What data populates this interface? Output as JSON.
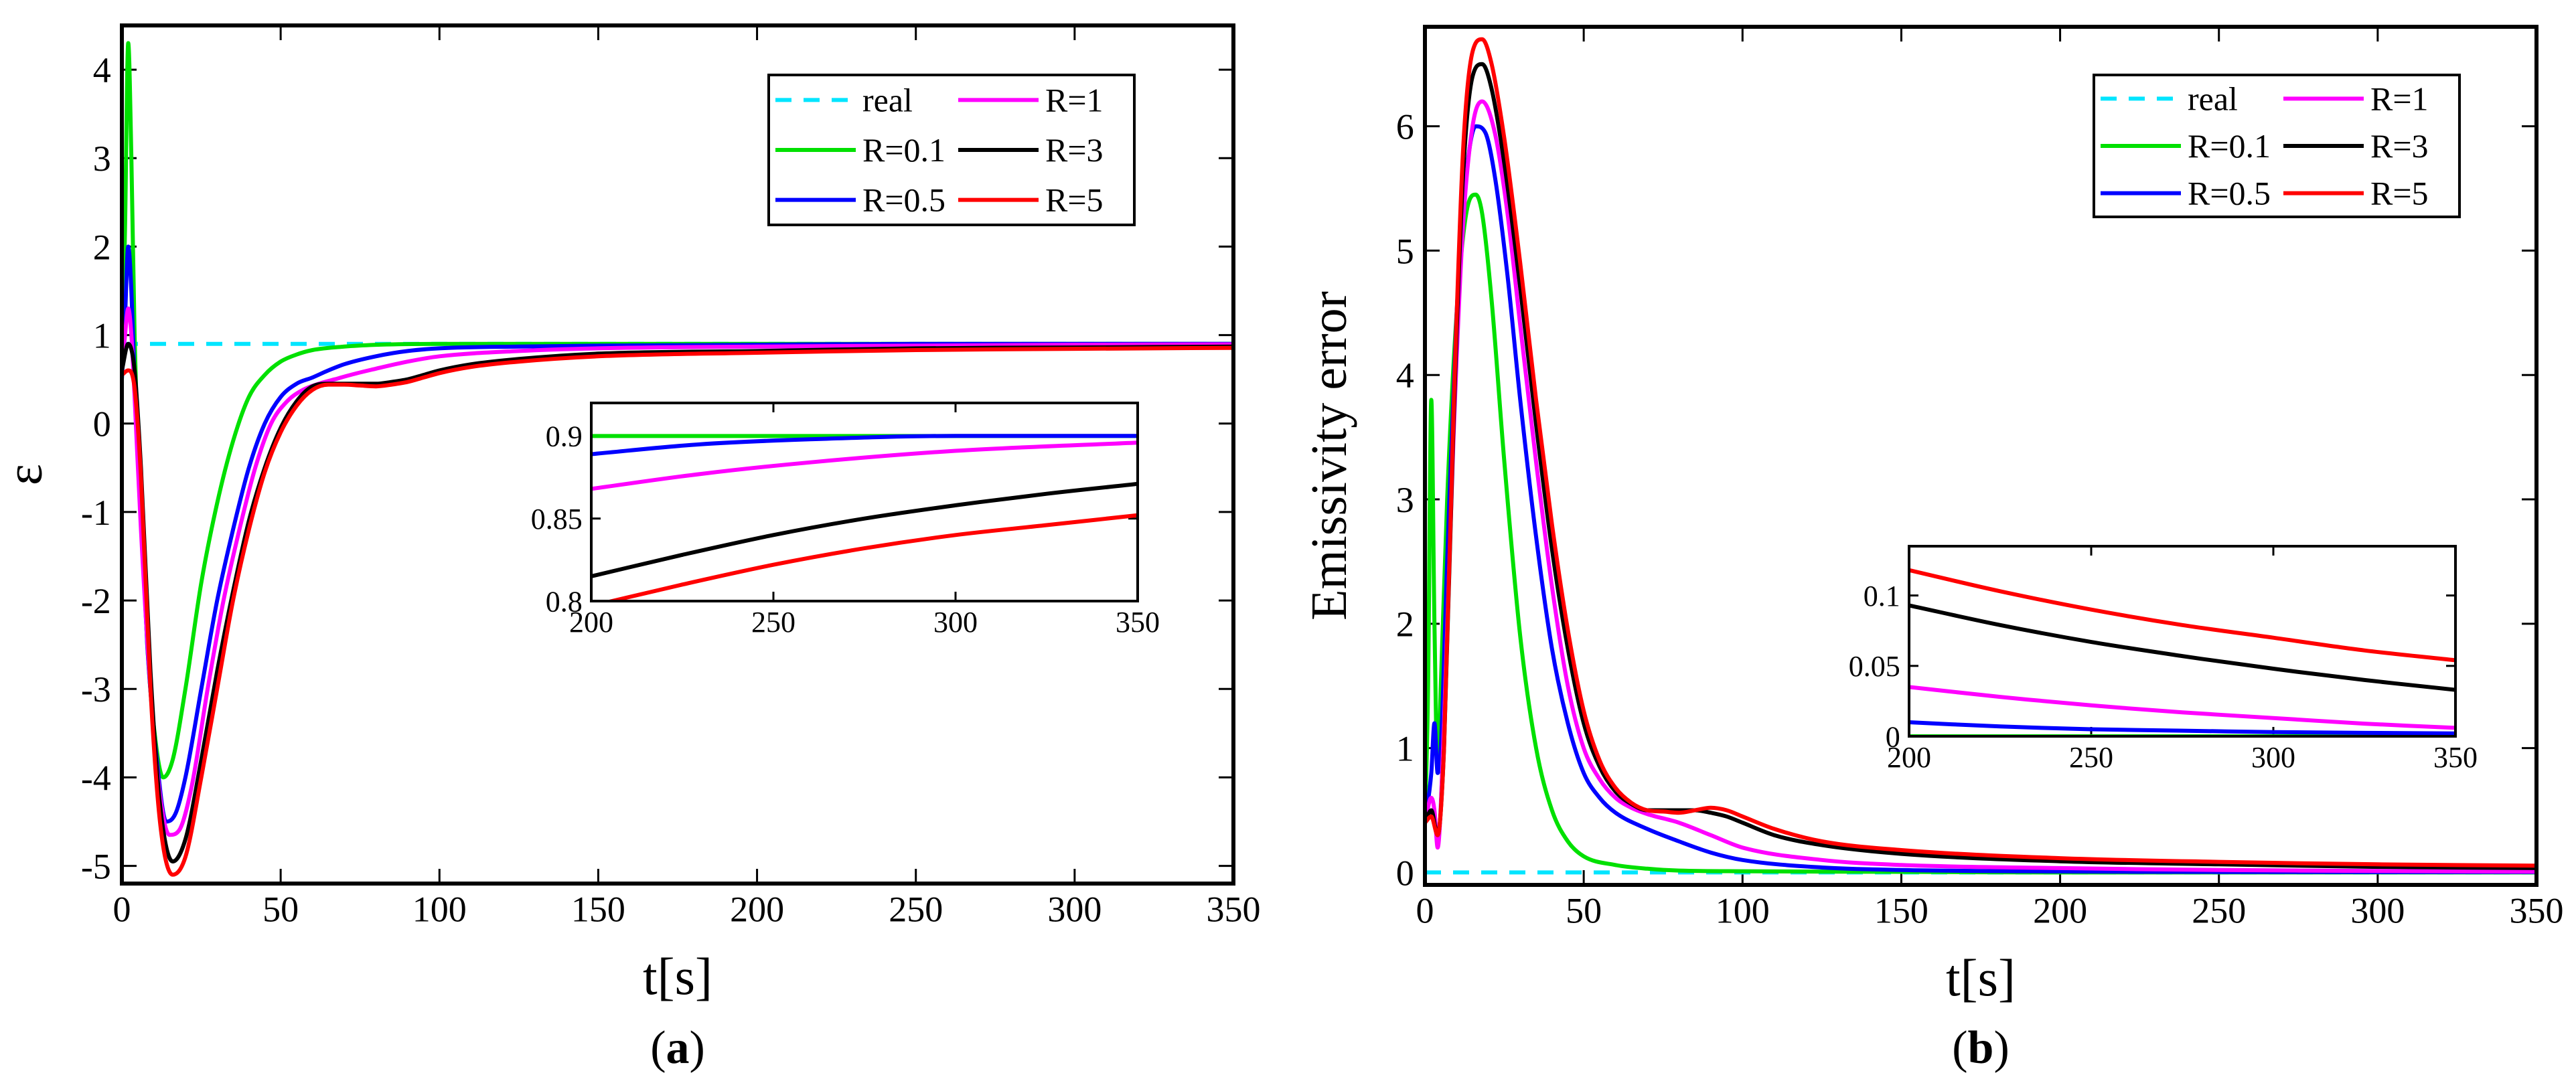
{
  "colors": {
    "real": "#00e5ff",
    "R=0.1": "#00e000",
    "R=0.5": "#0000ff",
    "R=1": "#ff00ff",
    "R=3": "#000000",
    "R=5": "#ff0000"
  },
  "chart_data": [
    {
      "type": "line",
      "panel_label": "(a)",
      "panel_label_parts": [
        "(",
        "a",
        ")"
      ],
      "title": "",
      "xlabel": "t[s]",
      "ylabel": "ε",
      "xlim": [
        0,
        350
      ],
      "ylim": [
        -5.2,
        4.5
      ],
      "xticks": [
        0,
        50,
        100,
        150,
        200,
        250,
        300,
        350
      ],
      "yticks": [
        -5,
        -4,
        -3,
        -2,
        -1,
        0,
        1,
        2,
        3,
        4
      ],
      "legend": [
        "real",
        "R=1",
        "R=0.1",
        "R=3",
        "R=0.5",
        "R=5"
      ],
      "series": [
        {
          "name": "real",
          "style": "dashed",
          "x": [
            0,
            350
          ],
          "values": [
            0.9,
            0.9
          ]
        },
        {
          "name": "R=0.1",
          "x": [
            0,
            1,
            2,
            3,
            4,
            6,
            8,
            10,
            13,
            16,
            20,
            25,
            30,
            35,
            40,
            45,
            50,
            55,
            60,
            70,
            80,
            100,
            150,
            200,
            250,
            300,
            350
          ],
          "values": [
            0.5,
            2.2,
            4.3,
            3.0,
            1.0,
            -1.0,
            -2.5,
            -3.4,
            -4.0,
            -3.8,
            -3.0,
            -1.8,
            -0.9,
            -0.2,
            0.3,
            0.55,
            0.7,
            0.78,
            0.83,
            0.87,
            0.89,
            0.9,
            0.9,
            0.9,
            0.9,
            0.9,
            0.9
          ]
        },
        {
          "name": "R=0.5",
          "x": [
            0,
            1,
            2,
            3,
            4,
            6,
            8,
            11,
            14,
            17,
            20,
            25,
            30,
            35,
            40,
            45,
            50,
            55,
            60,
            65,
            70,
            80,
            90,
            100,
            125,
            150,
            200,
            250,
            300,
            350
          ],
          "values": [
            0.5,
            1.2,
            2.0,
            1.5,
            0.5,
            -1.0,
            -2.5,
            -3.8,
            -4.5,
            -4.4,
            -4.0,
            -3.0,
            -2.0,
            -1.2,
            -0.5,
            0.0,
            0.3,
            0.45,
            0.52,
            0.6,
            0.67,
            0.76,
            0.82,
            0.85,
            0.87,
            0.88,
            0.89,
            0.9,
            0.9,
            0.9
          ]
        },
        {
          "name": "R=1",
          "x": [
            0,
            1,
            2,
            3,
            4,
            6,
            9,
            12,
            15,
            18,
            22,
            27,
            32,
            37,
            42,
            47,
            52,
            57,
            62,
            67,
            72,
            80,
            90,
            100,
            125,
            150,
            200,
            250,
            300,
            350
          ],
          "values": [
            0.6,
            1.0,
            1.3,
            1.0,
            0.3,
            -1.2,
            -3.0,
            -4.2,
            -4.65,
            -4.6,
            -4.1,
            -3.0,
            -2.0,
            -1.2,
            -0.5,
            0.0,
            0.25,
            0.38,
            0.45,
            0.5,
            0.55,
            0.62,
            0.7,
            0.76,
            0.82,
            0.85,
            0.87,
            0.88,
            0.89,
            0.895
          ]
        },
        {
          "name": "R=3",
          "x": [
            0,
            2,
            4,
            6,
            9,
            12,
            16,
            20,
            25,
            30,
            35,
            40,
            45,
            50,
            55,
            60,
            65,
            70,
            75,
            80,
            85,
            90,
            95,
            100,
            110,
            125,
            150,
            200,
            250,
            300,
            350
          ],
          "values": [
            0.6,
            0.9,
            0.6,
            -0.5,
            -2.8,
            -4.3,
            -4.95,
            -4.7,
            -3.8,
            -2.8,
            -1.9,
            -1.1,
            -0.5,
            -0.05,
            0.25,
            0.42,
            0.45,
            0.45,
            0.45,
            0.45,
            0.47,
            0.5,
            0.55,
            0.6,
            0.67,
            0.73,
            0.79,
            0.82,
            0.85,
            0.86,
            0.87
          ]
        },
        {
          "name": "R=5",
          "x": [
            0,
            2,
            4,
            6,
            9,
            12,
            16,
            20,
            25,
            30,
            35,
            40,
            45,
            50,
            55,
            60,
            65,
            70,
            75,
            80,
            85,
            90,
            95,
            100,
            110,
            125,
            150,
            200,
            250,
            300,
            350
          ],
          "values": [
            0.55,
            0.6,
            0.4,
            -0.6,
            -3.0,
            -4.5,
            -5.1,
            -4.9,
            -4.0,
            -3.0,
            -2.0,
            -1.2,
            -0.55,
            -0.1,
            0.2,
            0.38,
            0.44,
            0.44,
            0.43,
            0.42,
            0.44,
            0.47,
            0.52,
            0.57,
            0.64,
            0.7,
            0.76,
            0.8,
            0.83,
            0.845,
            0.855
          ]
        }
      ],
      "inset": {
        "xlim": [
          200,
          350
        ],
        "ylim": [
          0.8,
          0.92
        ],
        "xticks": [
          200,
          250,
          300,
          350
        ],
        "yticks": [
          0.8,
          0.85,
          0.9
        ],
        "series": [
          {
            "name": "R=0.1",
            "x": [
              200,
              350
            ],
            "values": [
              0.9,
              0.9
            ]
          },
          {
            "name": "R=0.5",
            "x": [
              200,
              230,
              260,
              300,
              350
            ],
            "values": [
              0.889,
              0.895,
              0.898,
              0.9,
              0.9
            ]
          },
          {
            "name": "R=1",
            "x": [
              200,
              230,
              260,
              300,
              350
            ],
            "values": [
              0.868,
              0.877,
              0.884,
              0.891,
              0.896
            ]
          },
          {
            "name": "R=3",
            "x": [
              200,
              225,
              250,
              275,
              300,
              325,
              350
            ],
            "values": [
              0.815,
              0.828,
              0.84,
              0.85,
              0.858,
              0.865,
              0.871
            ]
          },
          {
            "name": "R=5",
            "x": [
              200,
              225,
              250,
              275,
              300,
              325,
              350
            ],
            "values": [
              0.797,
              0.81,
              0.822,
              0.832,
              0.84,
              0.846,
              0.852
            ]
          }
        ]
      }
    },
    {
      "type": "line",
      "panel_label": "(b)",
      "panel_label_parts": [
        "(",
        "b",
        ")"
      ],
      "title": "",
      "xlabel": "t[s]",
      "ylabel": "Emissivity error",
      "xlim": [
        0,
        350
      ],
      "ylim": [
        -0.1,
        6.8
      ],
      "xticks": [
        0,
        50,
        100,
        150,
        200,
        250,
        300,
        350
      ],
      "yticks": [
        0,
        1,
        2,
        3,
        4,
        5,
        6
      ],
      "legend": [
        "real",
        "R=1",
        "R=0.1",
        "R=3",
        "R=0.5",
        "R=5"
      ],
      "series": [
        {
          "name": "real",
          "style": "dashed",
          "x": [
            0,
            350
          ],
          "values": [
            0,
            0
          ]
        },
        {
          "name": "R=0.1",
          "x": [
            0,
            1,
            2,
            3,
            4,
            5,
            7,
            10,
            13,
            16,
            18,
            21,
            25,
            30,
            35,
            40,
            45,
            50,
            60,
            70,
            80,
            100,
            150,
            200,
            350
          ],
          "values": [
            0.4,
            1.5,
            3.8,
            2.0,
            0.8,
            1.5,
            3.0,
            4.5,
            5.3,
            5.45,
            5.3,
            4.6,
            3.3,
            1.9,
            1.0,
            0.5,
            0.25,
            0.13,
            0.06,
            0.03,
            0.015,
            0.01,
            0.005,
            0.0,
            0.0
          ]
        },
        {
          "name": "R=0.5",
          "x": [
            0,
            2,
            3,
            4,
            5,
            7,
            10,
            13,
            16,
            19,
            22,
            26,
            30,
            35,
            40,
            45,
            50,
            55,
            60,
            70,
            80,
            90,
            100,
            125,
            150,
            200,
            250,
            350
          ],
          "values": [
            0.4,
            0.8,
            1.2,
            0.8,
            1.0,
            2.5,
            4.5,
            5.6,
            6.0,
            5.95,
            5.6,
            4.8,
            3.8,
            2.7,
            1.8,
            1.2,
            0.8,
            0.6,
            0.48,
            0.35,
            0.25,
            0.16,
            0.1,
            0.04,
            0.02,
            0.008,
            0.004,
            0.003
          ]
        },
        {
          "name": "R=1",
          "x": [
            0,
            2,
            3,
            4,
            6,
            9,
            12,
            15,
            18,
            22,
            26,
            30,
            35,
            40,
            45,
            50,
            55,
            60,
            65,
            70,
            80,
            90,
            100,
            125,
            150,
            200,
            250,
            300,
            350
          ],
          "values": [
            0.4,
            0.6,
            0.5,
            0.2,
            1.2,
            3.5,
            5.2,
            6.0,
            6.2,
            5.95,
            5.3,
            4.4,
            3.3,
            2.3,
            1.5,
            1.0,
            0.75,
            0.6,
            0.52,
            0.47,
            0.4,
            0.3,
            0.2,
            0.1,
            0.06,
            0.035,
            0.02,
            0.012,
            0.006
          ]
        },
        {
          "name": "R=3",
          "x": [
            0,
            2,
            4,
            6,
            9,
            12,
            15,
            18,
            21,
            25,
            30,
            35,
            40,
            45,
            50,
            55,
            60,
            65,
            70,
            75,
            80,
            85,
            90,
            95,
            100,
            110,
            125,
            150,
            200,
            250,
            300,
            350
          ],
          "values": [
            0.4,
            0.5,
            0.3,
            1.0,
            3.6,
            5.6,
            6.4,
            6.5,
            6.3,
            5.7,
            4.7,
            3.6,
            2.6,
            1.8,
            1.2,
            0.85,
            0.65,
            0.55,
            0.5,
            0.5,
            0.5,
            0.5,
            0.48,
            0.45,
            0.4,
            0.3,
            0.22,
            0.15,
            0.09,
            0.065,
            0.045,
            0.035
          ]
        },
        {
          "name": "R=5",
          "x": [
            0,
            2,
            4,
            6,
            9,
            12,
            15,
            18,
            21,
            25,
            30,
            35,
            40,
            45,
            50,
            55,
            60,
            65,
            70,
            75,
            80,
            85,
            90,
            95,
            100,
            110,
            125,
            150,
            200,
            250,
            300,
            350
          ],
          "values": [
            0.4,
            0.45,
            0.3,
            1.0,
            3.7,
            5.8,
            6.6,
            6.7,
            6.5,
            5.9,
            4.9,
            3.8,
            2.8,
            1.95,
            1.3,
            0.9,
            0.68,
            0.56,
            0.5,
            0.49,
            0.48,
            0.5,
            0.52,
            0.5,
            0.45,
            0.35,
            0.25,
            0.18,
            0.115,
            0.085,
            0.065,
            0.055
          ]
        }
      ],
      "inset": {
        "xlim": [
          200,
          350
        ],
        "ylim": [
          0,
          0.135
        ],
        "xticks": [
          200,
          250,
          300,
          350
        ],
        "yticks": [
          0,
          0.05,
          0.1
        ],
        "series": [
          {
            "name": "R=0.1",
            "x": [
              200,
              350
            ],
            "values": [
              0.0,
              0.0
            ]
          },
          {
            "name": "R=0.5",
            "x": [
              200,
              225,
              250,
              275,
              300,
              350
            ],
            "values": [
              0.01,
              0.007,
              0.005,
              0.004,
              0.003,
              0.002
            ]
          },
          {
            "name": "R=1",
            "x": [
              200,
              225,
              250,
              275,
              300,
              325,
              350
            ],
            "values": [
              0.035,
              0.028,
              0.022,
              0.017,
              0.013,
              0.009,
              0.006
            ]
          },
          {
            "name": "R=3",
            "x": [
              200,
              225,
              250,
              275,
              300,
              325,
              350
            ],
            "values": [
              0.093,
              0.079,
              0.067,
              0.057,
              0.048,
              0.04,
              0.033
            ]
          },
          {
            "name": "R=5",
            "x": [
              200,
              225,
              250,
              275,
              300,
              325,
              350
            ],
            "values": [
              0.118,
              0.103,
              0.09,
              0.079,
              0.07,
              0.061,
              0.054
            ]
          }
        ]
      }
    }
  ]
}
